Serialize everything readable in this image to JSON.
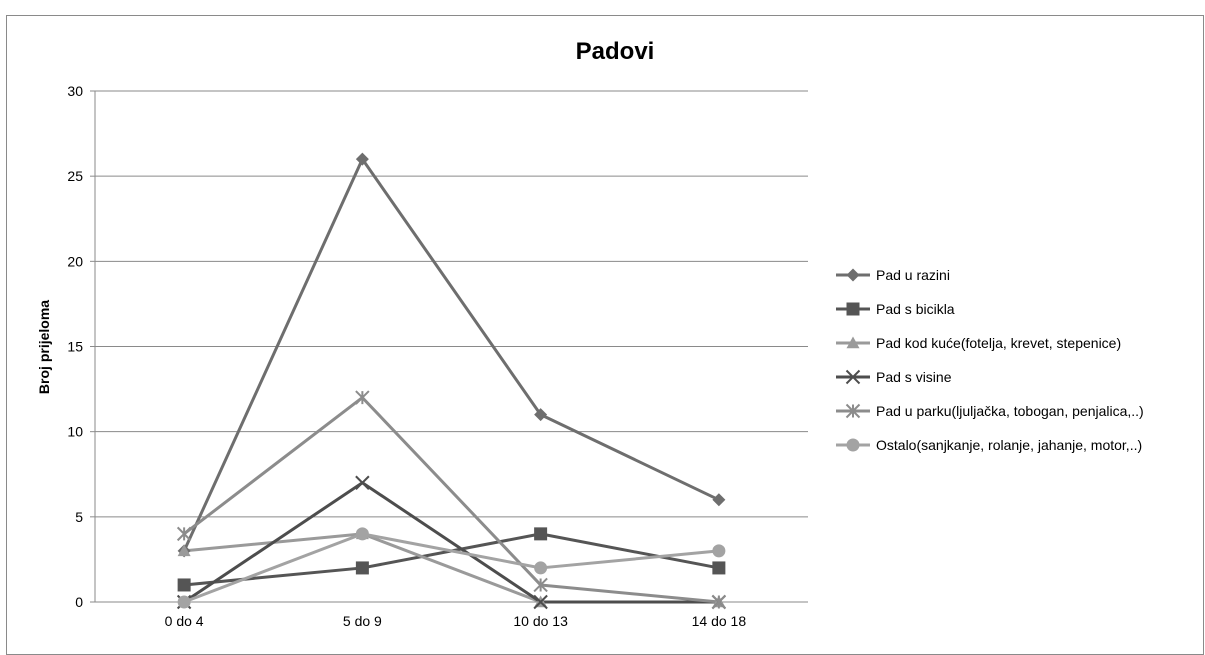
{
  "chart_data": {
    "type": "line",
    "title": "Padovi",
    "xlabel": "",
    "ylabel": "Broj prijeloma",
    "categories": [
      "0 do 4",
      "5 do 9",
      "10 do 13",
      "14 do 18"
    ],
    "ylim": [
      0,
      30
    ],
    "yticks": [
      0,
      5,
      10,
      15,
      20,
      25,
      30
    ],
    "grid": true,
    "legend_position": "right",
    "series": [
      {
        "name": "Pad u razini",
        "values": [
          3,
          26,
          11,
          6
        ],
        "color": "#6e6e6e",
        "marker": "diamond"
      },
      {
        "name": "Pad s bicikla",
        "values": [
          1,
          2,
          4,
          2
        ],
        "color": "#555555",
        "marker": "square"
      },
      {
        "name": "Pad kod kuće(fotelja, krevet, stepenice)",
        "values": [
          3,
          4,
          0,
          0
        ],
        "color": "#9a9a9a",
        "marker": "triangle"
      },
      {
        "name": "Pad s visine",
        "values": [
          0,
          7,
          0,
          0
        ],
        "color": "#4d4d4d",
        "marker": "x"
      },
      {
        "name": "Pad u parku(ljuljačka, tobogan, penjalica,..)",
        "values": [
          4,
          12,
          1,
          0
        ],
        "color": "#8c8c8c",
        "marker": "star"
      },
      {
        "name": "Ostalo(sanjkanje, rolanje, jahanje, motor,..)",
        "values": [
          0,
          4,
          2,
          3
        ],
        "color": "#a3a3a3",
        "marker": "circle"
      }
    ]
  }
}
